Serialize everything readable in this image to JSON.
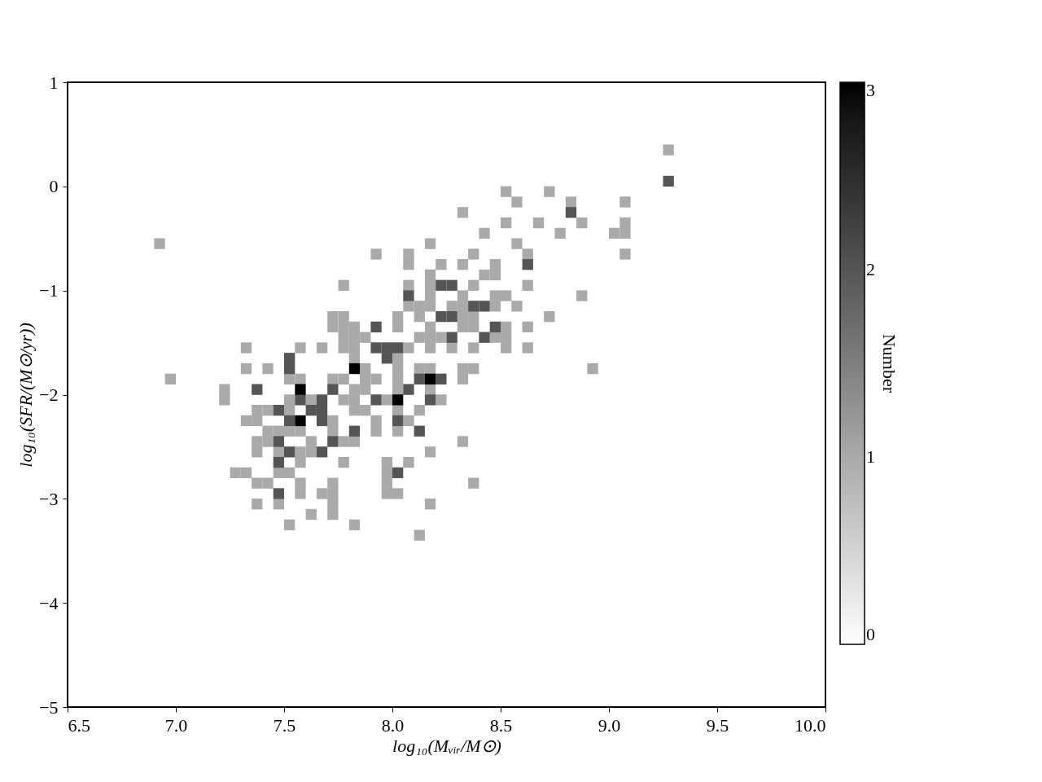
{
  "chart_data": {
    "type": "scatter",
    "marker": "square",
    "xlabel": "log₁₀(Mᵥᵢᵣ/M⊙)",
    "ylabel": "log₁₀(SFR/(M⊙/yr))",
    "clabel": "Number",
    "clim": [
      0,
      3
    ],
    "cticks": [
      0,
      1,
      2,
      3
    ],
    "grid": false,
    "xlim": [
      6.5,
      10
    ],
    "xticks": [
      6.5,
      {
        "value": 7,
        "label": "7.0"
      },
      7.5,
      {
        "value": 8,
        "label": "8.0"
      },
      8.5,
      {
        "value": 9,
        "label": "9.0"
      },
      9.5,
      {
        "value": 10,
        "label": "10.0"
      }
    ],
    "ylim": [
      -5,
      1
    ],
    "yticks": [
      {
        "value": -5,
        "label": "−5"
      },
      {
        "value": -4,
        "label": "−4"
      },
      {
        "value": -3,
        "label": "−3"
      },
      {
        "value": -2,
        "label": "−2"
      },
      {
        "value": -1,
        "label": "−1"
      },
      0,
      1
    ],
    "series": [
      {
        "color": "#aaaaaa",
        "x": [
          9.275,
          8.525,
          8.725,
          8.575,
          8.825,
          9.075,
          8.325,
          8.525,
          8.675,
          8.875,
          9.075,
          8.425,
          8.775,
          9.025,
          9.075,
          6.925,
          8.175,
          8.575,
          7.925,
          8.075,
          8.375,
          8.625,
          9.075,
          8.075,
          8.225,
          8.325,
          8.475,
          8.175,
          8.425,
          8.475,
          7.775,
          8.075,
          8.175,
          8.375,
          8.625,
          8.175,
          8.325,
          8.475,
          8.525,
          8.875,
          8.075,
          8.125,
          8.175,
          8.275,
          8.325,
          8.475,
          8.575,
          7.725,
          7.775,
          8.025,
          8.125,
          8.325,
          8.375,
          8.725,
          7.725,
          7.775,
          7.825,
          8.025,
          8.175,
          8.325,
          8.375,
          8.525,
          8.625,
          7.775,
          7.825,
          7.875,
          8.125,
          8.175,
          8.225,
          8.475,
          8.525,
          7.325,
          7.575,
          7.675,
          7.775,
          7.825,
          8.075,
          8.175,
          8.275,
          8.375,
          8.525,
          8.625,
          7.825,
          8.025,
          7.325,
          7.425,
          7.875,
          8.025,
          8.125,
          8.175,
          8.325,
          8.375,
          8.925,
          6.975,
          7.525,
          7.575,
          7.725,
          7.775,
          7.875,
          7.925,
          8.025,
          8.325,
          7.225,
          7.825,
          7.875,
          8.025,
          8.175,
          7.225,
          7.525,
          7.625,
          7.775,
          7.825,
          7.975,
          8.225,
          7.375,
          7.425,
          7.525,
          7.825,
          7.875,
          8.025,
          8.125,
          7.325,
          7.375,
          7.725,
          7.925,
          8.075,
          7.425,
          7.475,
          7.525,
          7.575,
          7.725,
          7.925,
          8.025,
          7.375,
          7.425,
          7.625,
          7.775,
          7.825,
          8.325,
          7.375,
          7.475,
          7.575,
          7.625,
          8.175,
          7.575,
          7.775,
          7.975,
          8.075,
          7.275,
          7.325,
          7.475,
          7.525,
          7.975,
          7.375,
          7.425,
          7.575,
          7.725,
          7.975,
          8.375,
          7.575,
          7.675,
          7.725,
          7.975,
          8.025,
          7.375,
          7.475,
          7.725,
          8.175,
          7.625,
          7.725,
          7.525,
          7.825,
          8.125
        ],
        "values": [
          0.35,
          -0.05,
          -0.05,
          -0.15,
          -0.15,
          -0.15,
          -0.25,
          -0.35,
          -0.35,
          -0.35,
          -0.35,
          -0.45,
          -0.45,
          -0.45,
          -0.45,
          -0.55,
          -0.55,
          -0.55,
          -0.65,
          -0.65,
          -0.65,
          -0.65,
          -0.65,
          -0.75,
          -0.75,
          -0.75,
          -0.75,
          -0.85,
          -0.85,
          -0.85,
          -0.95,
          -0.95,
          -0.95,
          -0.95,
          -0.95,
          -1.05,
          -1.05,
          -1.05,
          -1.05,
          -1.05,
          -1.15,
          -1.15,
          -1.15,
          -1.15,
          -1.15,
          -1.15,
          -1.15,
          -1.25,
          -1.25,
          -1.25,
          -1.25,
          -1.25,
          -1.25,
          -1.25,
          -1.35,
          -1.35,
          -1.35,
          -1.35,
          -1.35,
          -1.35,
          -1.35,
          -1.35,
          -1.35,
          -1.45,
          -1.45,
          -1.45,
          -1.45,
          -1.45,
          -1.45,
          -1.45,
          -1.45,
          -1.55,
          -1.55,
          -1.55,
          -1.55,
          -1.55,
          -1.55,
          -1.55,
          -1.55,
          -1.55,
          -1.55,
          -1.55,
          -1.65,
          -1.65,
          -1.75,
          -1.75,
          -1.75,
          -1.75,
          -1.75,
          -1.75,
          -1.75,
          -1.75,
          -1.75,
          -1.85,
          -1.85,
          -1.85,
          -1.85,
          -1.85,
          -1.85,
          -1.85,
          -1.85,
          -1.85,
          -1.95,
          -1.95,
          -1.95,
          -1.95,
          -1.95,
          -2.05,
          -2.05,
          -2.05,
          -2.05,
          -2.05,
          -2.05,
          -2.05,
          -2.15,
          -2.15,
          -2.15,
          -2.15,
          -2.15,
          -2.15,
          -2.15,
          -2.25,
          -2.25,
          -2.25,
          -2.25,
          -2.25,
          -2.35,
          -2.35,
          -2.35,
          -2.35,
          -2.35,
          -2.35,
          -2.35,
          -2.45,
          -2.45,
          -2.45,
          -2.45,
          -2.45,
          -2.45,
          -2.55,
          -2.55,
          -2.55,
          -2.55,
          -2.55,
          -2.65,
          -2.65,
          -2.65,
          -2.65,
          -2.75,
          -2.75,
          -2.75,
          -2.75,
          -2.75,
          -2.85,
          -2.85,
          -2.85,
          -2.85,
          -2.85,
          -2.85,
          -2.95,
          -2.95,
          -2.95,
          -2.95,
          -2.95,
          -3.05,
          -3.05,
          -3.05,
          -3.05,
          -3.15,
          -3.15,
          -3.25,
          -3.25,
          -3.35
        ],
        "cvalues": [
          1,
          1,
          1,
          1,
          1,
          1,
          1,
          1,
          1,
          1,
          1,
          1,
          1,
          1,
          1,
          1,
          1,
          1,
          1,
          1,
          1,
          1,
          1,
          1,
          1,
          1,
          1,
          1,
          1,
          1,
          1,
          1,
          1,
          1,
          1,
          1,
          1,
          1,
          1,
          1,
          1,
          1,
          1,
          1,
          1,
          1,
          1,
          1,
          1,
          1,
          1,
          1,
          1,
          1,
          1,
          1,
          1,
          1,
          1,
          1,
          1,
          1,
          1,
          1,
          1,
          1,
          1,
          1,
          1,
          1,
          1,
          1,
          1,
          1,
          1,
          1,
          1,
          1,
          1,
          1,
          1,
          1,
          1,
          1,
          1,
          1,
          1,
          1,
          1,
          1,
          1,
          1,
          1,
          1,
          1,
          1,
          1,
          1,
          1,
          1,
          1,
          1,
          1,
          1,
          1,
          1,
          1,
          1,
          1,
          1,
          1,
          1,
          1,
          1,
          1,
          1,
          1,
          1,
          1,
          1,
          1,
          1,
          1,
          1,
          1,
          1,
          1,
          1,
          1,
          1,
          1,
          1,
          1,
          1,
          1,
          1,
          1,
          1,
          1,
          1,
          1,
          1,
          1,
          1,
          1,
          1,
          1,
          1,
          1,
          1,
          1,
          1,
          1,
          1,
          1,
          1,
          1,
          1,
          1,
          1,
          1,
          1,
          1,
          1,
          1,
          1,
          1,
          1,
          1,
          1,
          1,
          1,
          1
        ]
      },
      {
        "color": "#555555",
        "x": [
          9.275,
          8.825,
          8.625,
          8.225,
          8.275,
          8.075,
          8.375,
          8.425,
          8.225,
          8.275,
          7.925,
          8.475,
          8.275,
          8.425,
          7.925,
          7.975,
          8.025,
          7.525,
          7.975,
          7.525,
          8.125,
          8.225,
          7.375,
          7.725,
          8.075,
          7.575,
          7.675,
          7.925,
          8.175,
          7.475,
          7.625,
          7.675,
          7.525,
          7.675,
          8.025,
          7.825,
          8.125,
          7.475,
          7.725,
          7.525,
          7.675,
          7.475,
          8.025,
          7.475
        ],
        "values": [
          0.05,
          -0.25,
          -0.75,
          -0.95,
          -0.95,
          -1.05,
          -1.15,
          -1.15,
          -1.25,
          -1.25,
          -1.35,
          -1.35,
          -1.45,
          -1.45,
          -1.55,
          -1.55,
          -1.55,
          -1.65,
          -1.65,
          -1.75,
          -1.85,
          -1.85,
          -1.95,
          -1.95,
          -1.95,
          -2.05,
          -2.05,
          -2.05,
          -2.05,
          -2.15,
          -2.15,
          -2.15,
          -2.25,
          -2.25,
          -2.25,
          -2.35,
          -2.35,
          -2.45,
          -2.45,
          -2.55,
          -2.55,
          -2.65,
          -2.75,
          -2.95
        ],
        "cvalues": [
          2,
          2,
          2,
          2,
          2,
          2,
          2,
          2,
          2,
          2,
          2,
          2,
          2,
          2,
          2,
          2,
          2,
          2,
          2,
          2,
          2,
          2,
          2,
          2,
          2,
          2,
          2,
          2,
          2,
          2,
          2,
          2,
          2,
          2,
          2,
          2,
          2,
          2,
          2,
          2,
          2,
          2,
          2,
          2
        ]
      },
      {
        "color": "#000000",
        "x": [
          7.825,
          8.175,
          7.575,
          8.025,
          7.575
        ],
        "values": [
          -1.75,
          -1.85,
          -1.95,
          -2.05,
          -2.25
        ],
        "cvalues": [
          3,
          3,
          3,
          3,
          3
        ]
      }
    ]
  }
}
